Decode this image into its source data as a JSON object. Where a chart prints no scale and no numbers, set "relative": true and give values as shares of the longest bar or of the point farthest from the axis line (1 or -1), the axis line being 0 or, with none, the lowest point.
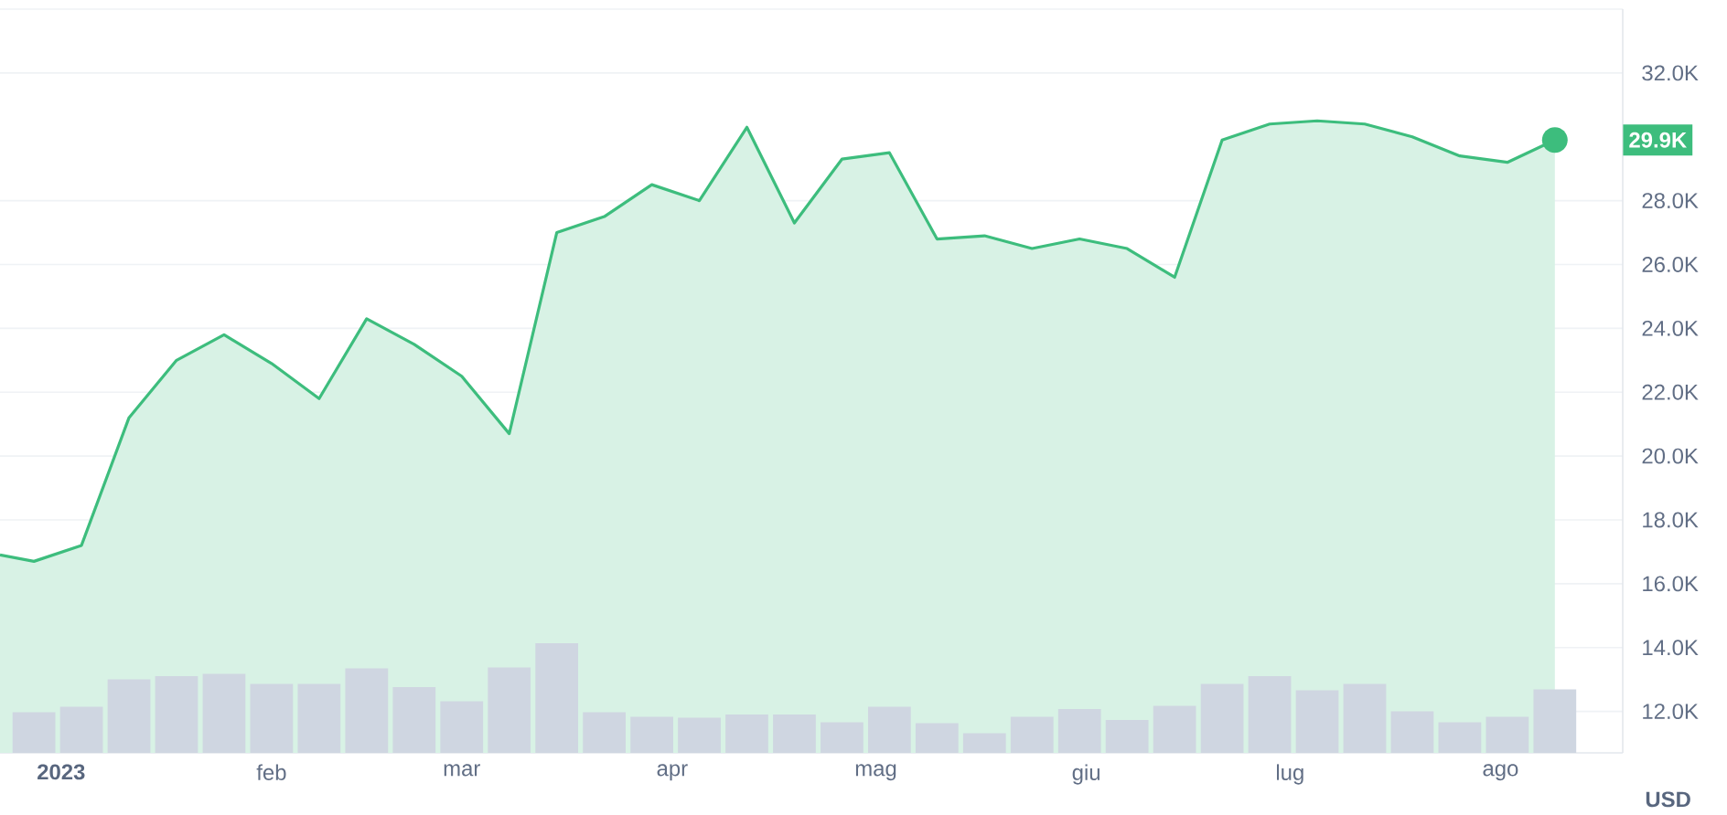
{
  "chart_data": [
    {
      "type": "area",
      "color": "#3dbd7d",
      "ylabel": "USD",
      "grid": "y",
      "x": [
        "2022-12-23",
        "2022-12-28",
        "2023-01-04",
        "2023-01-11",
        "2023-01-18",
        "2023-01-25",
        "2023-02-01",
        "2023-02-08",
        "2023-02-15",
        "2023-02-22",
        "2023-03-01",
        "2023-03-08",
        "2023-03-15",
        "2023-03-22",
        "2023-03-29",
        "2023-04-05",
        "2023-04-12",
        "2023-04-19",
        "2023-04-26",
        "2023-05-03",
        "2023-05-10",
        "2023-05-17",
        "2023-05-24",
        "2023-05-31",
        "2023-06-07",
        "2023-06-14",
        "2023-06-21",
        "2023-06-28",
        "2023-07-05",
        "2023-07-12",
        "2023-07-19",
        "2023-07-26",
        "2023-08-02",
        "2023-08-09"
      ],
      "values": [
        16900,
        16700,
        17200,
        21200,
        23000,
        23800,
        22900,
        21800,
        24300,
        23500,
        22500,
        20700,
        27000,
        27500,
        28500,
        28000,
        30300,
        27300,
        29300,
        29500,
        26800,
        26900,
        26500,
        26800,
        26500,
        25600,
        29900,
        30400,
        30500,
        30400,
        30000,
        29400,
        29200,
        29900
      ],
      "xlim": [
        "2022-12-23",
        "2023-08-19"
      ],
      "ylim": [
        10700,
        34000
      ],
      "xticks": [
        {
          "value": "2023-01-01",
          "label": "2023"
        },
        {
          "value": "2023-02-01",
          "label": "feb"
        },
        {
          "value": "2023-03-01",
          "label": "mar"
        },
        {
          "value": "2023-04-01",
          "label": "apr"
        },
        {
          "value": "2023-05-01",
          "label": "mag"
        },
        {
          "value": "2023-06-01",
          "label": "giu"
        },
        {
          "value": "2023-07-01",
          "label": "lug"
        },
        {
          "value": "2023-08-01",
          "label": "ago"
        }
      ],
      "yticks": [
        {
          "value": 12000,
          "label": "12.0K"
        },
        {
          "value": 14000,
          "label": "14.0K"
        },
        {
          "value": 16000,
          "label": "16.0K"
        },
        {
          "value": 18000,
          "label": "18.0K"
        },
        {
          "value": 20000,
          "label": "20.0K"
        },
        {
          "value": 22000,
          "label": "22.0K"
        },
        {
          "value": 24000,
          "label": "24.0K"
        },
        {
          "value": 26000,
          "label": "26.0K"
        },
        {
          "value": 28000,
          "label": "28.0K"
        },
        {
          "value": 32000,
          "label": "32.0K"
        },
        {
          "value": 34000,
          "label": null
        }
      ],
      "annotations": [
        "29.9K"
      ]
    },
    {
      "type": "bar",
      "color": "#cfd6e1",
      "relative": true,
      "x": [
        "2022-12-28",
        "2023-01-04",
        "2023-01-11",
        "2023-01-18",
        "2023-01-25",
        "2023-02-01",
        "2023-02-08",
        "2023-02-15",
        "2023-02-22",
        "2023-03-01",
        "2023-03-08",
        "2023-03-15",
        "2023-03-22",
        "2023-03-29",
        "2023-04-05",
        "2023-04-12",
        "2023-04-19",
        "2023-04-26",
        "2023-05-03",
        "2023-05-10",
        "2023-05-17",
        "2023-05-24",
        "2023-05-31",
        "2023-06-07",
        "2023-06-14",
        "2023-06-21",
        "2023-06-28",
        "2023-07-05",
        "2023-07-12",
        "2023-07-19",
        "2023-07-26",
        "2023-08-02",
        "2023-08-09"
      ],
      "values": [
        0.37,
        0.42,
        0.67,
        0.7,
        0.72,
        0.63,
        0.63,
        0.77,
        0.6,
        0.47,
        0.78,
        1,
        0.37,
        0.33,
        0.32,
        0.35,
        0.35,
        0.28,
        0.42,
        0.27,
        0.18,
        0.33,
        0.4,
        0.3,
        0.43,
        0.63,
        0.7,
        0.57,
        0.63,
        0.38,
        0.28,
        0.33,
        0.58
      ],
      "xlim": [
        "2022-12-23",
        "2023-08-19"
      ]
    }
  ]
}
